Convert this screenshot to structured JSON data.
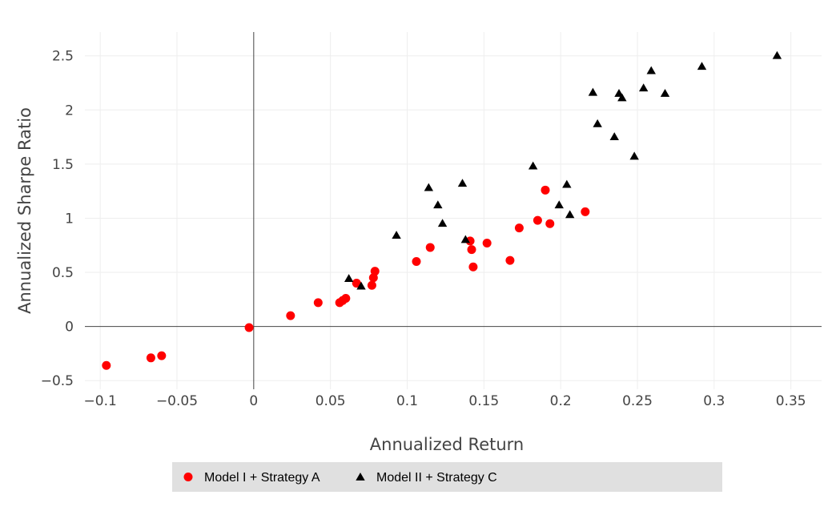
{
  "chart_data": {
    "type": "scatter",
    "title": "",
    "xlabel": "Annualized Return",
    "ylabel": "Annualized Sharpe Ratio",
    "xlim": [
      -0.11,
      0.37
    ],
    "ylim": [
      -0.58,
      2.72
    ],
    "x_ticks": [
      -0.1,
      -0.05,
      0,
      0.05,
      0.1,
      0.15,
      0.2,
      0.25,
      0.3,
      0.35
    ],
    "y_ticks": [
      -0.5,
      0,
      0.5,
      1,
      1.5,
      2,
      2.5
    ],
    "x_tick_labels": [
      "−0.1",
      "−0.05",
      "0",
      "0.05",
      "0.1",
      "0.15",
      "0.2",
      "0.25",
      "0.3",
      "0.35"
    ],
    "y_tick_labels": [
      "−0.5",
      "0",
      "0.5",
      "1",
      "1.5",
      "2",
      "2.5"
    ],
    "grid": true,
    "legend_position": "bottom-center",
    "series": [
      {
        "name": "Model I + Strategy A",
        "marker": "circle",
        "color": "#ff0000",
        "points": [
          [
            -0.096,
            -0.36
          ],
          [
            -0.067,
            -0.29
          ],
          [
            -0.06,
            -0.27
          ],
          [
            -0.003,
            -0.01
          ],
          [
            0.024,
            0.1
          ],
          [
            0.042,
            0.22
          ],
          [
            0.056,
            0.22
          ],
          [
            0.058,
            0.24
          ],
          [
            0.06,
            0.26
          ],
          [
            0.067,
            0.4
          ],
          [
            0.077,
            0.38
          ],
          [
            0.078,
            0.45
          ],
          [
            0.079,
            0.51
          ],
          [
            0.106,
            0.6
          ],
          [
            0.115,
            0.73
          ],
          [
            0.141,
            0.79
          ],
          [
            0.142,
            0.71
          ],
          [
            0.143,
            0.55
          ],
          [
            0.152,
            0.77
          ],
          [
            0.167,
            0.61
          ],
          [
            0.173,
            0.91
          ],
          [
            0.185,
            0.98
          ],
          [
            0.19,
            1.26
          ],
          [
            0.193,
            0.95
          ],
          [
            0.216,
            1.06
          ]
        ]
      },
      {
        "name": "Model II + Strategy C",
        "marker": "triangle",
        "color": "#000000",
        "points": [
          [
            0.062,
            0.44
          ],
          [
            0.07,
            0.37
          ],
          [
            0.093,
            0.84
          ],
          [
            0.114,
            1.28
          ],
          [
            0.12,
            1.12
          ],
          [
            0.123,
            0.95
          ],
          [
            0.136,
            1.32
          ],
          [
            0.138,
            0.8
          ],
          [
            0.182,
            1.48
          ],
          [
            0.199,
            1.12
          ],
          [
            0.204,
            1.31
          ],
          [
            0.206,
            1.03
          ],
          [
            0.221,
            2.16
          ],
          [
            0.224,
            1.87
          ],
          [
            0.235,
            1.75
          ],
          [
            0.238,
            2.15
          ],
          [
            0.24,
            2.11
          ],
          [
            0.248,
            1.57
          ],
          [
            0.254,
            2.2
          ],
          [
            0.259,
            2.36
          ],
          [
            0.268,
            2.15
          ],
          [
            0.292,
            2.4
          ],
          [
            0.341,
            2.5
          ]
        ]
      }
    ]
  },
  "colors": {
    "grid": "#eeeeee",
    "zeroline": "#444444",
    "legend_bg": "#e0e0e0"
  }
}
